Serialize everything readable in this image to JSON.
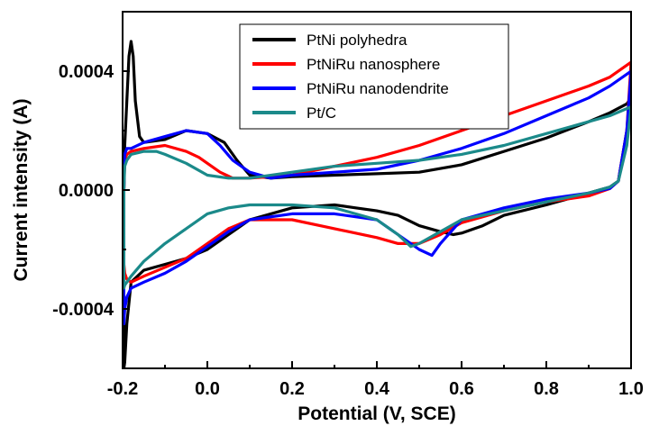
{
  "chart_data": {
    "type": "line",
    "title": "",
    "xlabel": "Potential (V, SCE)",
    "ylabel": "Current intensity (A)",
    "xlim": [
      -0.2,
      1.0
    ],
    "ylim": [
      -0.0006,
      0.0006
    ],
    "xticks": [
      -0.2,
      0.0,
      0.2,
      0.4,
      0.6,
      0.8,
      1.0
    ],
    "xtick_labels": [
      "-0.2",
      "0.0",
      "0.2",
      "0.4",
      "0.6",
      "0.8",
      "1.0"
    ],
    "yticks": [
      -0.0004,
      0.0,
      0.0004
    ],
    "ytick_labels": [
      "-0.0004",
      "0.0000",
      "0.0004"
    ],
    "grid": false,
    "legend_position": "top-center",
    "series": [
      {
        "name": "PtNi polyhedra",
        "color": "#000000",
        "x": [
          -0.197,
          -0.195,
          -0.19,
          -0.185,
          -0.18,
          -0.175,
          -0.17,
          -0.16,
          -0.15,
          -0.1,
          -0.05,
          0.0,
          0.04,
          0.07,
          0.1,
          0.15,
          0.2,
          0.3,
          0.4,
          0.5,
          0.6,
          0.7,
          0.8,
          0.9,
          0.95,
          0.99,
          1.0,
          0.99,
          0.97,
          0.95,
          0.9,
          0.85,
          0.8,
          0.7,
          0.65,
          0.6,
          0.58,
          0.55,
          0.5,
          0.45,
          0.4,
          0.35,
          0.3,
          0.2,
          0.1,
          0.05,
          0.0,
          -0.05,
          -0.1,
          -0.15,
          -0.18,
          -0.19,
          -0.195,
          -0.197
        ],
        "y": [
          0.0,
          0.00015,
          0.0003,
          0.00045,
          0.0005,
          0.00045,
          0.0003,
          0.00018,
          0.00016,
          0.00017,
          0.0002,
          0.00019,
          0.00016,
          0.0001,
          5e-05,
          4e-05,
          4.5e-05,
          5e-05,
          5.5e-05,
          6e-05,
          8.5e-05,
          0.00013,
          0.000175,
          0.00023,
          0.00026,
          0.00029,
          0.00031,
          0.0002,
          3e-05,
          1e-05,
          -1e-05,
          -3e-05,
          -5e-05,
          -8.5e-05,
          -0.00012,
          -0.000145,
          -0.00015,
          -0.00014,
          -0.00012,
          -8.5e-05,
          -7e-05,
          -6e-05,
          -5e-05,
          -6e-05,
          -0.0001,
          -0.00015,
          -0.0002,
          -0.00023,
          -0.00025,
          -0.00027,
          -0.00031,
          -0.00045,
          -0.00058,
          -0.0006
        ]
      },
      {
        "name": "PtNiRu nanosphere",
        "color": "#ff0000",
        "x": [
          -0.197,
          -0.195,
          -0.19,
          -0.18,
          -0.15,
          -0.1,
          -0.05,
          -0.02,
          0.0,
          0.03,
          0.06,
          0.1,
          0.2,
          0.3,
          0.4,
          0.5,
          0.6,
          0.7,
          0.8,
          0.9,
          0.95,
          1.0,
          0.99,
          0.97,
          0.95,
          0.9,
          0.8,
          0.7,
          0.6,
          0.55,
          0.5,
          0.45,
          0.4,
          0.3,
          0.2,
          0.1,
          0.05,
          0.0,
          -0.05,
          -0.1,
          -0.15,
          -0.18,
          -0.19,
          -0.195,
          -0.197
        ],
        "y": [
          0.0,
          0.0001,
          0.00012,
          0.00013,
          0.00014,
          0.00015,
          0.00013,
          0.00011,
          9e-05,
          6e-05,
          4e-05,
          4e-05,
          5e-05,
          8e-05,
          0.00011,
          0.00015,
          0.0002,
          0.00025,
          0.0003,
          0.00035,
          0.00038,
          0.00043,
          0.0002,
          3e-05,
          5e-06,
          -2e-05,
          -4e-05,
          -7e-05,
          -0.00011,
          -0.00015,
          -0.00018,
          -0.00018,
          -0.00016,
          -0.00013,
          -0.0001,
          -0.0001,
          -0.00013,
          -0.00018,
          -0.00023,
          -0.00026,
          -0.00029,
          -0.00031,
          -0.0003,
          -0.00028,
          -0.00025
        ]
      },
      {
        "name": "PtNiRu nanodendrite",
        "color": "#0000ff",
        "x": [
          -0.197,
          -0.195,
          -0.19,
          -0.18,
          -0.15,
          -0.1,
          -0.05,
          0.0,
          0.03,
          0.06,
          0.1,
          0.15,
          0.2,
          0.3,
          0.4,
          0.5,
          0.6,
          0.7,
          0.8,
          0.9,
          0.95,
          1.0,
          0.99,
          0.97,
          0.95,
          0.9,
          0.8,
          0.7,
          0.6,
          0.55,
          0.53,
          0.5,
          0.45,
          0.4,
          0.3,
          0.2,
          0.1,
          0.05,
          0.0,
          -0.05,
          -0.1,
          -0.15,
          -0.18,
          -0.19,
          -0.195,
          -0.197
        ],
        "y": [
          0.0,
          0.00012,
          0.00014,
          0.00014,
          0.00016,
          0.00018,
          0.0002,
          0.00019,
          0.00015,
          0.0001,
          6e-05,
          4e-05,
          5e-05,
          6e-05,
          7e-05,
          0.0001,
          0.00014,
          0.00019,
          0.00025,
          0.00031,
          0.00035,
          0.0004,
          0.0002,
          3e-05,
          5e-06,
          -1e-05,
          -3e-05,
          -6e-05,
          -0.0001,
          -0.00018,
          -0.00022,
          -0.0002,
          -0.00015,
          -0.0001,
          -8e-05,
          -8e-05,
          -0.0001,
          -0.00014,
          -0.00019,
          -0.00024,
          -0.00028,
          -0.00031,
          -0.00033,
          -0.00036,
          -0.0004,
          -0.00045
        ]
      },
      {
        "name": "Pt/C",
        "color": "#1b8a8a",
        "x": [
          -0.197,
          -0.195,
          -0.19,
          -0.18,
          -0.15,
          -0.12,
          -0.1,
          -0.05,
          0.0,
          0.05,
          0.1,
          0.2,
          0.3,
          0.4,
          0.5,
          0.6,
          0.7,
          0.8,
          0.9,
          0.95,
          1.0,
          0.99,
          0.97,
          0.95,
          0.9,
          0.8,
          0.7,
          0.6,
          0.55,
          0.5,
          0.48,
          0.45,
          0.4,
          0.3,
          0.2,
          0.1,
          0.05,
          0.0,
          -0.05,
          -0.1,
          -0.15,
          -0.18,
          -0.19,
          -0.195,
          -0.197
        ],
        "y": [
          0.0,
          8e-05,
          0.0001,
          0.00012,
          0.00013,
          0.00013,
          0.00012,
          9e-05,
          5e-05,
          4e-05,
          4e-05,
          6e-05,
          8e-05,
          9e-05,
          0.0001,
          0.00012,
          0.00015,
          0.00019,
          0.00023,
          0.00025,
          0.00028,
          0.00015,
          3e-05,
          1e-05,
          -1e-05,
          -4e-05,
          -7e-05,
          -0.0001,
          -0.00014,
          -0.00018,
          -0.00019,
          -0.00015,
          -0.0001,
          -6e-05,
          -5e-05,
          -5e-05,
          -6e-05,
          -8e-05,
          -0.00013,
          -0.00018,
          -0.00024,
          -0.00029,
          -0.00031,
          -0.00032,
          -0.00033
        ]
      }
    ]
  }
}
